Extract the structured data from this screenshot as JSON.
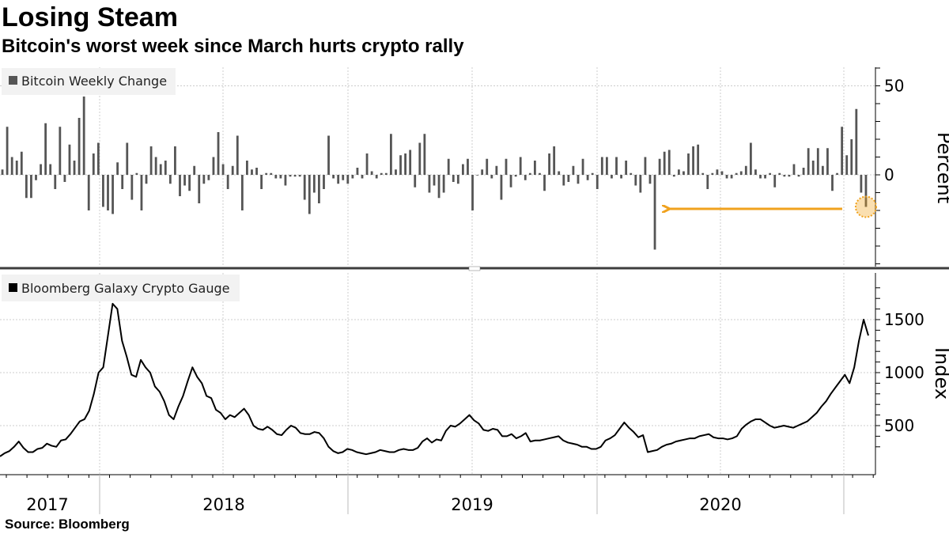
{
  "header": {
    "title": "Losing Steam",
    "subtitle": "Bitcoin's worst week since March hurts crypto rally"
  },
  "footer": {
    "source": "Source: Bloomberg"
  },
  "colors": {
    "bar": "#555555",
    "line": "#000000",
    "arrow": "#f0a21e",
    "grid": "#cccccc"
  },
  "chart_data": [
    {
      "type": "bar",
      "legend": "Bitcoin Weekly Change",
      "ylabel": "Percent",
      "ylim": [
        -52,
        60
      ],
      "yticks": [
        0,
        50
      ],
      "annotation": "arrow-left-to-2020-03-low",
      "series": [
        {
          "name": "Bitcoin Weekly Change",
          "values": [
            3,
            27,
            10,
            8,
            13,
            -13,
            -13,
            -3,
            6,
            29,
            6,
            -8,
            27,
            -4,
            17,
            8,
            32,
            44,
            -20,
            12,
            18,
            -18,
            -20,
            -22,
            7,
            -8,
            18,
            -14,
            1,
            -20,
            -5,
            16,
            10,
            6,
            8,
            -5,
            16,
            -12,
            -6,
            -9,
            5,
            -16,
            -5,
            -3,
            10,
            24,
            6,
            -8,
            5,
            22,
            -20,
            8,
            3,
            4,
            -8,
            1,
            1,
            -2,
            -2,
            -6,
            -1,
            -1,
            -1,
            -14,
            -22,
            -10,
            -16,
            -8,
            22,
            -2,
            -5,
            -3,
            -5,
            -2,
            4,
            -2,
            12,
            2,
            -2,
            1,
            1,
            23,
            3,
            11,
            12,
            14,
            -7,
            18,
            23,
            -10,
            -6,
            -13,
            -10,
            9,
            -4,
            -5,
            6,
            9,
            -20,
            0,
            3,
            9,
            -2,
            5,
            -14,
            9,
            -7,
            -1,
            10,
            -3,
            1,
            8,
            1,
            -9,
            12,
            16,
            2,
            -6,
            -4,
            5,
            -5,
            9,
            -3,
            1,
            -8,
            10,
            10,
            -2,
            10,
            -2,
            8,
            1,
            -6,
            -10,
            10,
            -5,
            -42,
            9,
            13,
            14,
            -1,
            3,
            2,
            12,
            16,
            17,
            1,
            -8,
            1,
            3,
            2,
            -2,
            -2,
            1,
            2,
            5,
            18,
            3,
            -2,
            -2,
            1,
            -7,
            1,
            -1,
            -1,
            6,
            -1,
            4,
            15,
            8,
            15,
            5,
            15,
            -9,
            1,
            27,
            11,
            20,
            37,
            -10,
            -18
          ]
        }
      ]
    },
    {
      "type": "line",
      "legend": "Bloomberg Galaxy Crypto Gauge",
      "ylabel": "Index",
      "ylim": [
        200,
        1850
      ],
      "yticks": [
        500,
        1000,
        1500
      ],
      "xticks": [
        "2017",
        "2018",
        "2019",
        "2020"
      ],
      "series": [
        {
          "name": "Bloomberg Galaxy Crypto Gauge",
          "values": [
            210,
            240,
            260,
            300,
            350,
            290,
            250,
            250,
            280,
            290,
            330,
            310,
            300,
            360,
            370,
            420,
            480,
            540,
            560,
            640,
            800,
            1000,
            1050,
            1350,
            1650,
            1600,
            1300,
            1150,
            980,
            960,
            1120,
            1050,
            1000,
            870,
            820,
            730,
            600,
            560,
            680,
            780,
            920,
            1050,
            960,
            900,
            780,
            760,
            650,
            620,
            560,
            600,
            580,
            620,
            660,
            600,
            500,
            470,
            460,
            490,
            460,
            420,
            410,
            460,
            500,
            480,
            430,
            420,
            420,
            440,
            430,
            380,
            300,
            260,
            240,
            250,
            280,
            270,
            250,
            240,
            230,
            240,
            250,
            270,
            260,
            250,
            250,
            270,
            280,
            270,
            270,
            290,
            350,
            380,
            340,
            370,
            360,
            450,
            500,
            490,
            520,
            560,
            600,
            550,
            520,
            460,
            450,
            470,
            460,
            400,
            400,
            420,
            380,
            400,
            430,
            350,
            360,
            360,
            370,
            380,
            390,
            400,
            360,
            340,
            330,
            320,
            300,
            300,
            280,
            280,
            300,
            360,
            380,
            410,
            470,
            530,
            480,
            440,
            390,
            410,
            250,
            260,
            270,
            300,
            320,
            330,
            350,
            360,
            370,
            380,
            380,
            400,
            410,
            420,
            390,
            380,
            380,
            370,
            380,
            400,
            470,
            510,
            540,
            560,
            560,
            530,
            500,
            480,
            490,
            500,
            490,
            480,
            500,
            520,
            540,
            580,
            620,
            680,
            730,
            800,
            860,
            920,
            980,
            900,
            1050,
            1300,
            1500,
            1350
          ]
        }
      ]
    }
  ]
}
